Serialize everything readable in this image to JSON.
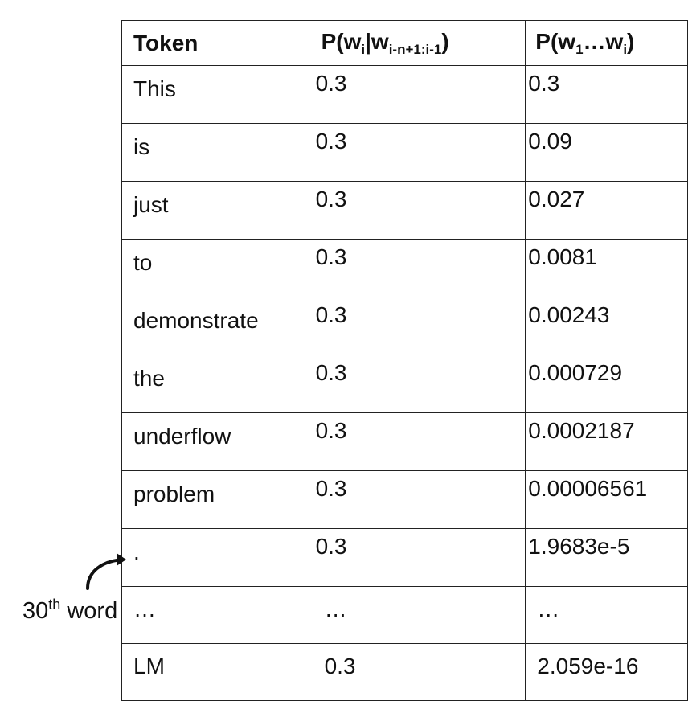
{
  "table": {
    "headers": {
      "token": "Token",
      "cond_prob": {
        "p": "P(w",
        "i1": "i",
        "bar": "|w",
        "sub": "i-n+1:i-1",
        "close": ")"
      },
      "joint_prob": {
        "p": "P(w",
        "s1": "1",
        "dots": "…w",
        "si": "i",
        "close": ")"
      }
    },
    "rows": [
      {
        "token": "This",
        "cond": "0.3",
        "joint": "0.3"
      },
      {
        "token": "is",
        "cond": "0.3",
        "joint": "0.09"
      },
      {
        "token": "just",
        "cond": "0.3",
        "joint": "0.027"
      },
      {
        "token": "to",
        "cond": "0.3",
        "joint": "0.0081"
      },
      {
        "token": "demonstrate",
        "cond": "0.3",
        "joint": "0.00243"
      },
      {
        "token": "the",
        "cond": "0.3",
        "joint": "0.000729"
      },
      {
        "token": "underflow",
        "cond": "0.3",
        "joint": "0.0002187"
      },
      {
        "token": "problem",
        "cond": "0.3",
        "joint": "0.00006561"
      },
      {
        "token": ".",
        "cond": "0.3",
        "joint": "1.9683e-5"
      }
    ],
    "ellipsis_row": {
      "token": "…",
      "cond": "…",
      "joint": "…"
    },
    "last_row": {
      "token": "LM",
      "cond": "0.3",
      "joint": "2.059e-16"
    }
  },
  "annotation": {
    "number": "30",
    "suffix": "th",
    "word": " word"
  }
}
